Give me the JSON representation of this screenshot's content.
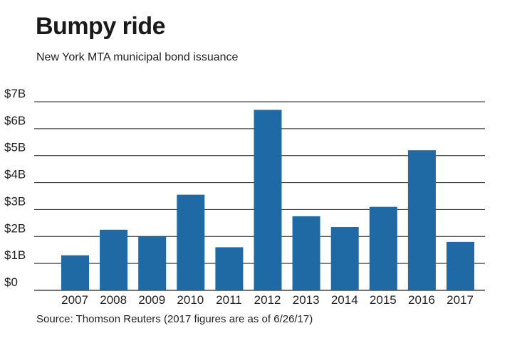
{
  "header": {
    "title": "Bumpy ride",
    "subtitle": "New York MTA municipal bond issuance"
  },
  "footer": {
    "source": "Source: Thomson Reuters (2017 figures are as of 6/26/17)"
  },
  "colors": {
    "bar": "#1f6aa5",
    "grid": "#222222",
    "axis": "#222222"
  },
  "chart_data": {
    "type": "bar",
    "title": "Bumpy ride",
    "subtitle": "New York MTA municipal bond issuance",
    "xlabel": "",
    "ylabel": "",
    "unit": "billions of dollars",
    "categories": [
      "2007",
      "2008",
      "2009",
      "2010",
      "2011",
      "2012",
      "2013",
      "2014",
      "2015",
      "2016",
      "2017"
    ],
    "values": [
      1.3,
      2.25,
      2.0,
      3.55,
      1.6,
      6.7,
      2.75,
      2.35,
      3.1,
      5.2,
      1.8
    ],
    "ylim": [
      0,
      7
    ],
    "yticks": [
      0,
      1,
      2,
      3,
      4,
      5,
      6,
      7
    ],
    "ytick_labels": [
      "$0",
      "$1B",
      "$2B",
      "$3B",
      "$4B",
      "$5B",
      "$6B",
      "$7B"
    ],
    "grid": true,
    "legend": "none"
  }
}
